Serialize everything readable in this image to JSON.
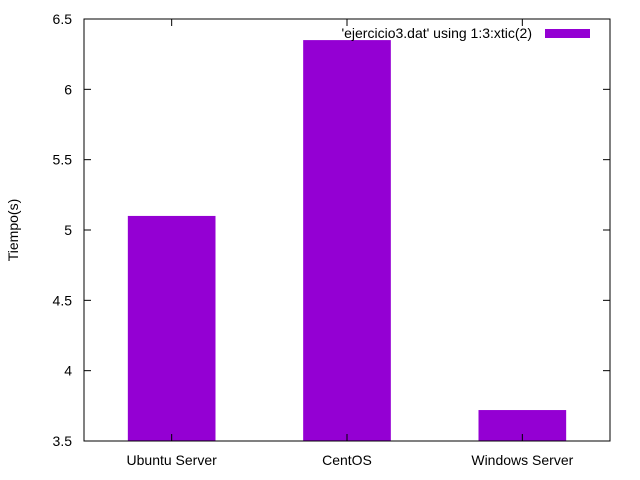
{
  "chart_data": {
    "type": "bar",
    "title": "",
    "xlabel": "",
    "ylabel": "Tiempo(s)",
    "categories": [
      "Ubuntu Server",
      "CentOS",
      "Windows Server"
    ],
    "series": [
      {
        "name": "'ejercicio3.dat' using 1:3:xtic(2)",
        "values": [
          5.1,
          6.35,
          3.72
        ],
        "color": "#9400d3"
      }
    ],
    "ylim": [
      3.5,
      6.5
    ],
    "yticks": [
      "3.5",
      "4",
      "4.5",
      "5",
      "5.5",
      "6",
      "6.5"
    ],
    "grid": false,
    "legend_position": "top-right"
  }
}
